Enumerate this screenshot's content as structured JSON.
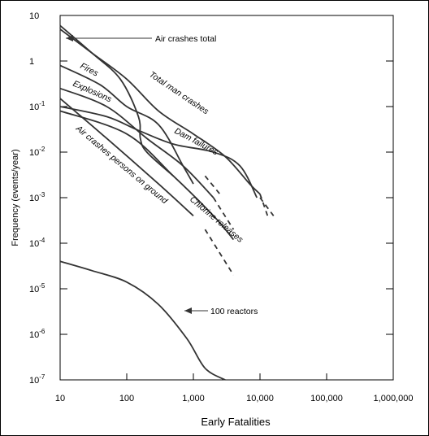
{
  "chart_data": {
    "type": "line",
    "xlabel": "Early Fatalities",
    "ylabel": "Frequency (events/year)",
    "xscale": "log",
    "yscale": "log",
    "xlim": [
      10,
      1000000
    ],
    "ylim": [
      1e-07,
      10
    ],
    "grid": false,
    "x_tick_labels": [
      "10",
      "100",
      "1,000",
      "10,000",
      "100,000",
      "1,000,000"
    ],
    "y_tick_labels": [
      {
        "base": "10",
        "exp": ""
      },
      {
        "base": "1",
        "exp": ""
      },
      {
        "base": "10",
        "exp": "-1"
      },
      {
        "base": "10",
        "exp": "-2"
      },
      {
        "base": "10",
        "exp": "-3"
      },
      {
        "base": "10",
        "exp": "-4"
      },
      {
        "base": "10",
        "exp": "-5"
      },
      {
        "base": "10",
        "exp": "-6"
      },
      {
        "base": "10",
        "exp": "-7"
      }
    ],
    "series": [
      {
        "name": "Total man crashes",
        "points": [
          [
            10,
            5
          ],
          [
            30,
            1.5
          ],
          [
            100,
            0.4
          ],
          [
            300,
            0.08
          ],
          [
            1000,
            0.025
          ],
          [
            3000,
            0.008
          ],
          [
            7000,
            0.002
          ],
          [
            10000,
            0.0012
          ]
        ],
        "dashed_points": [
          [
            10000,
            0.0012
          ],
          [
            13000,
            0.0004
          ]
        ]
      },
      {
        "name": "Air crashes total",
        "points": [
          [
            10,
            6
          ],
          [
            30,
            1.5
          ],
          [
            80,
            0.4
          ],
          [
            150,
            0.06
          ],
          [
            160,
            0.02
          ],
          [
            200,
            0.01
          ],
          [
            500,
            0.003
          ]
        ]
      },
      {
        "name": "Fires",
        "points": [
          [
            10,
            0.8
          ],
          [
            40,
            0.3
          ],
          [
            100,
            0.1
          ],
          [
            300,
            0.04
          ],
          [
            700,
            0.005
          ],
          [
            1000,
            0.002
          ]
        ],
        "dashed_points": [
          [
            1500,
            0.003
          ],
          [
            2500,
            0.0012
          ]
        ]
      },
      {
        "name": "Explosions",
        "points": [
          [
            10,
            0.25
          ],
          [
            50,
            0.1
          ],
          [
            200,
            0.02
          ],
          [
            700,
            0.005
          ],
          [
            2000,
            0.001
          ]
        ],
        "dashed_points": [
          [
            2000,
            0.001
          ],
          [
            4000,
            0.0002
          ]
        ]
      },
      {
        "name": "Dam failures",
        "points": [
          [
            10,
            0.1
          ],
          [
            50,
            0.06
          ],
          [
            150,
            0.03
          ],
          [
            500,
            0.015
          ],
          [
            2000,
            0.01
          ],
          [
            5000,
            0.005
          ],
          [
            9000,
            0.001
          ]
        ],
        "dashed_points": [
          [
            10000,
            0.001
          ],
          [
            16000,
            0.0004
          ]
        ]
      },
      {
        "name": "Chlorine releases",
        "points": [
          [
            10,
            0.08
          ],
          [
            100,
            0.025
          ],
          [
            500,
            0.003
          ],
          [
            2000,
            0.0004
          ],
          [
            4000,
            0.00012
          ]
        ]
      },
      {
        "name": "Air crashes persons on ground",
        "points": [
          [
            10,
            0.15
          ],
          [
            50,
            0.02
          ],
          [
            300,
            0.002
          ],
          [
            1000,
            0.0004
          ]
        ],
        "dashed_points": [
          [
            1500,
            0.0002
          ],
          [
            4000,
            2e-05
          ]
        ]
      },
      {
        "name": "100 reactors",
        "points": [
          [
            10,
            4e-05
          ],
          [
            30,
            2.5e-05
          ],
          [
            100,
            1.4e-05
          ],
          [
            300,
            4.5e-06
          ],
          [
            800,
            8e-07
          ],
          [
            1500,
            1.8e-07
          ],
          [
            3000,
            1e-07
          ]
        ]
      }
    ],
    "labels": {
      "total_man": "Total man crashes",
      "fires": "Fires",
      "explosions": "Explosions",
      "dam": "Dam failures",
      "chlorine": "Chlorine releases",
      "air_ground": "Air crashes persons on ground",
      "air_total": "Air crashes total",
      "reactors": "100 reactors"
    }
  },
  "colors": {
    "line": "#333333",
    "axis": "#000000",
    "background": "#ffffff"
  }
}
